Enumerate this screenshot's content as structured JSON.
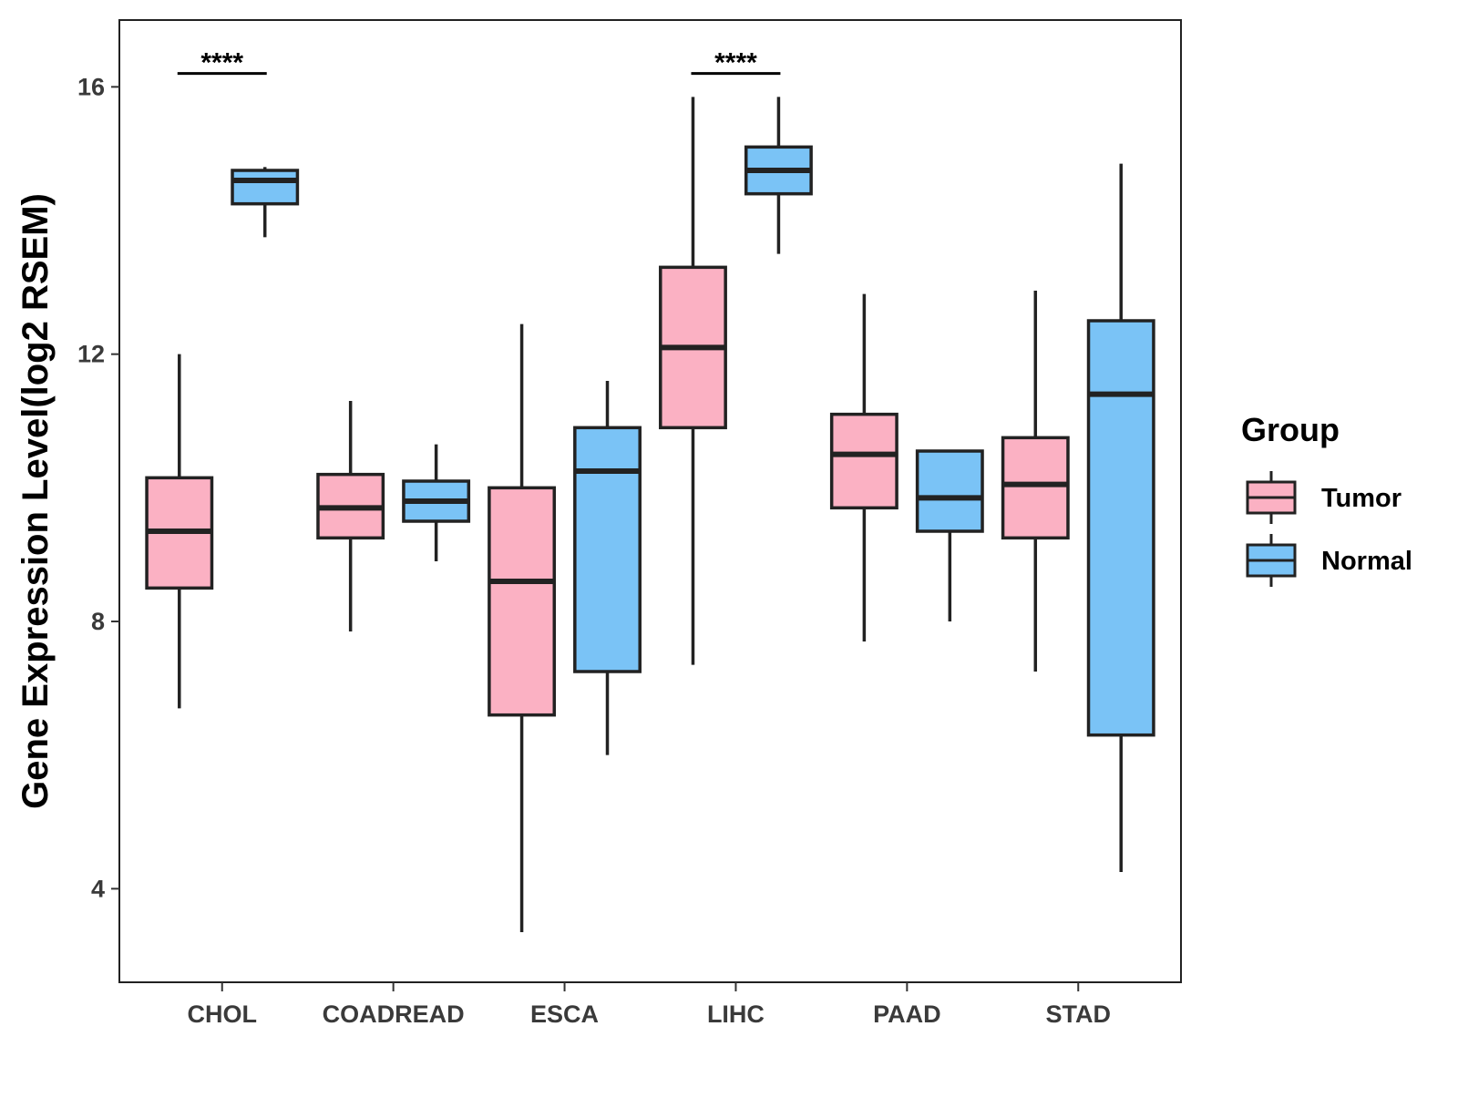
{
  "chart_data": {
    "type": "boxplot",
    "title": "",
    "xlabel": "",
    "ylabel": "Gene Expression Level(log2 RSEM)",
    "ylim": [
      2.6,
      17.0
    ],
    "yticks": [
      4,
      8,
      12,
      16
    ],
    "categories": [
      "CHOL",
      "COADREAD",
      "ESCA",
      "LIHC",
      "PAAD",
      "STAD"
    ],
    "grid": false,
    "series": [
      {
        "name": "Tumor",
        "color": "#FBB1C3",
        "boxes": [
          {
            "min": 6.7,
            "q1": 8.5,
            "median": 9.35,
            "q3": 10.15,
            "max": 12.0
          },
          {
            "min": 7.85,
            "q1": 9.25,
            "median": 9.7,
            "q3": 10.2,
            "max": 11.3
          },
          {
            "min": 3.35,
            "q1": 6.6,
            "median": 8.6,
            "q3": 10.0,
            "max": 12.45
          },
          {
            "min": 7.35,
            "q1": 10.9,
            "median": 12.1,
            "q3": 13.3,
            "max": 15.85
          },
          {
            "min": 7.7,
            "q1": 9.7,
            "median": 10.5,
            "q3": 11.1,
            "max": 12.9
          },
          {
            "min": 7.25,
            "q1": 9.25,
            "median": 10.05,
            "q3": 10.75,
            "max": 12.95
          }
        ]
      },
      {
        "name": "Normal",
        "color": "#7AC3F6",
        "boxes": [
          {
            "min": 13.75,
            "q1": 14.25,
            "median": 14.6,
            "q3": 14.75,
            "max": 14.8
          },
          {
            "min": 8.9,
            "q1": 9.5,
            "median": 9.8,
            "q3": 10.1,
            "max": 10.65
          },
          {
            "min": 6.0,
            "q1": 7.25,
            "median": 10.25,
            "q3": 10.9,
            "max": 11.6
          },
          {
            "min": 13.5,
            "q1": 14.4,
            "median": 14.75,
            "q3": 15.1,
            "max": 15.85
          },
          {
            "min": 8.0,
            "q1": 9.35,
            "median": 9.85,
            "q3": 10.55,
            "max": 10.55
          },
          {
            "min": 4.25,
            "q1": 6.3,
            "median": 11.4,
            "q3": 12.5,
            "max": 14.85
          }
        ]
      }
    ],
    "annotations": [
      {
        "category": "CHOL",
        "text": "****",
        "y": 16.2
      },
      {
        "category": "LIHC",
        "text": "****",
        "y": 16.2
      }
    ],
    "legend": {
      "title": "Group",
      "placement": "right",
      "items": [
        "Tumor",
        "Normal"
      ]
    }
  }
}
